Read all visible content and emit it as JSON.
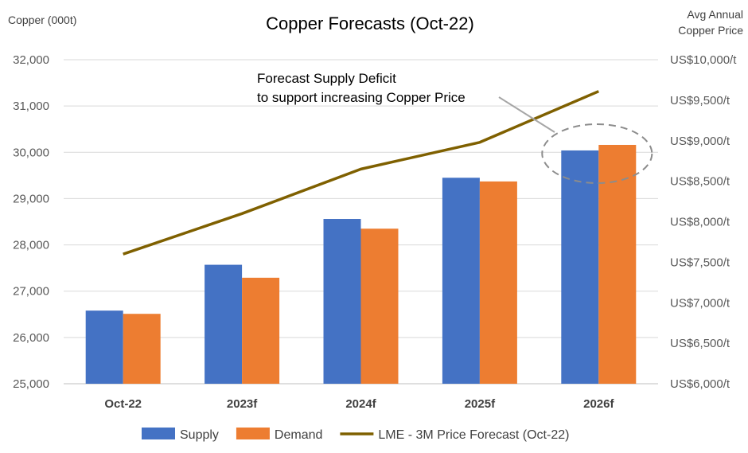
{
  "chart_data": {
    "type": "bar",
    "title": "Copper Forecasts (Oct-22)",
    "ylabel": "Copper (000t)",
    "y2label_lines": [
      "Avg Annual",
      "Copper Price"
    ],
    "categories": [
      "Oct-22",
      "2023f",
      "2024f",
      "2025f",
      "2026f"
    ],
    "ylim": [
      25000,
      32000
    ],
    "y_ticks": [
      "25,000",
      "26,000",
      "27,000",
      "28,000",
      "29,000",
      "30,000",
      "31,000",
      "32,000"
    ],
    "y2lim": [
      6000,
      10000
    ],
    "y2_ticks": [
      "US$6,000/t",
      "US$6,500/t",
      "US$7,000/t",
      "US$7,500/t",
      "US$8,000/t",
      "US$8,500/t",
      "US$9,000/t",
      "US$9,500/t",
      "US$10,000/t"
    ],
    "grid": true,
    "legend_position": "bottom",
    "series": [
      {
        "name": "Supply",
        "type": "bar",
        "axis": "left",
        "color": "#4472C4",
        "values": [
          26580,
          27570,
          28560,
          29450,
          30040
        ]
      },
      {
        "name": "Demand",
        "type": "bar",
        "axis": "left",
        "color": "#ED7D31",
        "values": [
          26510,
          27290,
          28350,
          29370,
          30160
        ]
      },
      {
        "name": "LME - 3M Price Forecast (Oct-22)",
        "type": "line",
        "axis": "right",
        "color": "#7F6000",
        "values": [
          7600,
          8100,
          8650,
          8980,
          9610
        ]
      }
    ],
    "annotation": {
      "lines": [
        "Forecast Supply Deficit",
        "to support increasing Copper Price"
      ],
      "target_category": "2026f"
    }
  }
}
